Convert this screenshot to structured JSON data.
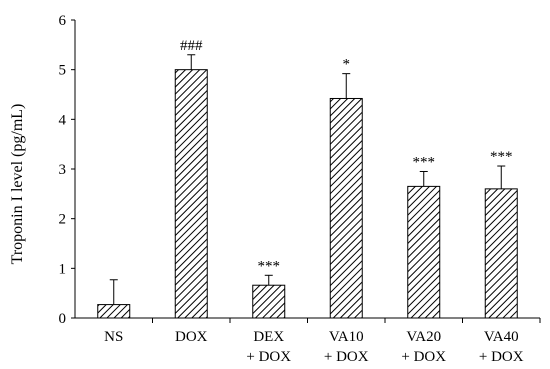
{
  "chart_data": {
    "type": "bar",
    "categories": [
      [
        "NS"
      ],
      [
        "DOX"
      ],
      [
        "DEX",
        "+ DOX"
      ],
      [
        "VA10",
        "+ DOX"
      ],
      [
        "VA20",
        "+ DOX"
      ],
      [
        "VA40",
        "+ DOX"
      ]
    ],
    "values": [
      0.27,
      5.0,
      0.66,
      4.42,
      2.65,
      2.6
    ],
    "errors": [
      0.5,
      0.3,
      0.2,
      0.5,
      0.3,
      0.46
    ],
    "annotations": [
      "",
      "###",
      "***",
      "*",
      "***",
      "***"
    ],
    "ylabel": "Troponin I level (pg/mL)",
    "xlabel": "",
    "ylim": [
      0,
      6
    ],
    "yticks": [
      0,
      1,
      2,
      3,
      4,
      5,
      6
    ],
    "grid": false,
    "bar_pattern": "diagonal-hatch",
    "colors": {
      "bar_stroke": "#000000",
      "hatch": "#000000",
      "fill": "#ffffff"
    }
  }
}
